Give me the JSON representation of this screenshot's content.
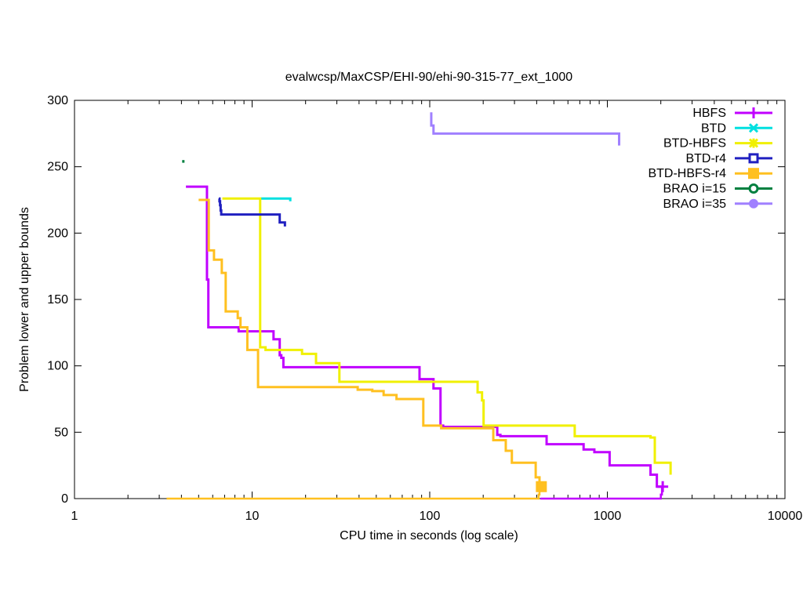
{
  "chart_data": {
    "type": "line",
    "title": "evalwcsp/MaxCSP/EHI-90/ehi-90-315-77_ext_1000",
    "xlabel": "CPU time in seconds (log scale)",
    "ylabel": "Problem lower and upper bounds",
    "xscale": "log",
    "xlim": [
      1,
      10000
    ],
    "ylim": [
      0,
      300
    ],
    "xticks": [
      1,
      10,
      100,
      1000,
      10000
    ],
    "xtick_labels": [
      "1",
      "10",
      "100",
      "1000",
      "10000"
    ],
    "yticks": [
      0,
      50,
      100,
      150,
      200,
      250,
      300
    ],
    "ytick_labels": [
      "0",
      "50",
      "100",
      "150",
      "200",
      "250",
      "300"
    ],
    "grid": false,
    "legend_position": "top-right",
    "series": [
      {
        "name": "HBFS",
        "color": "#c000ff",
        "marker": "plus",
        "points": [
          [
            4.24,
            235
          ],
          [
            5.57,
            165
          ],
          [
            5.67,
            129
          ],
          [
            8.4,
            126
          ],
          [
            13.2,
            120
          ],
          [
            14.3,
            108
          ],
          [
            14.6,
            106
          ],
          [
            15.0,
            99
          ],
          [
            87.6,
            90
          ],
          [
            105,
            83
          ],
          [
            115,
            55
          ],
          [
            119,
            54
          ],
          [
            240,
            48
          ],
          [
            250,
            47
          ],
          [
            455,
            41
          ],
          [
            735,
            37
          ],
          [
            845,
            35
          ],
          [
            1030,
            25
          ],
          [
            1750,
            18
          ],
          [
            1900,
            9
          ],
          [
            2050,
            9
          ]
        ],
        "lower": [
          [
            420,
            0
          ],
          [
            1950,
            0
          ],
          [
            2000,
            3
          ],
          [
            2030,
            9
          ]
        ]
      },
      {
        "name": "BTD",
        "color": "#00e0e0",
        "marker": "x",
        "points": [
          [
            11.2,
            226
          ],
          [
            16.4,
            226
          ],
          [
            16.4,
            224
          ]
        ]
      },
      {
        "name": "BTD-HBFS",
        "color": "#f0f000",
        "marker": "star",
        "points": [
          [
            6.8,
            226
          ],
          [
            11.1,
            114
          ],
          [
            11.9,
            112
          ],
          [
            19.1,
            109
          ],
          [
            22.9,
            102
          ],
          [
            31,
            88
          ],
          [
            186,
            80
          ],
          [
            197,
            74
          ],
          [
            201,
            55
          ],
          [
            655,
            47
          ],
          [
            1750,
            46
          ],
          [
            1850,
            27
          ],
          [
            2270,
            18
          ]
        ]
      },
      {
        "name": "BTD-r4",
        "color": "#2020c0",
        "marker": "square-open",
        "points": [
          [
            6.5,
            226
          ],
          [
            6.55,
            224
          ],
          [
            6.6,
            221
          ],
          [
            6.65,
            217
          ],
          [
            6.7,
            214
          ],
          [
            14.3,
            208
          ],
          [
            15.3,
            205
          ]
        ]
      },
      {
        "name": "BTD-HBFS-r4",
        "color": "#ffc020",
        "marker": "square-filled",
        "points": [
          [
            5.0,
            225
          ],
          [
            5.7,
            187
          ],
          [
            6.1,
            180
          ],
          [
            6.75,
            170
          ],
          [
            7.1,
            141
          ],
          [
            8.3,
            136
          ],
          [
            8.6,
            129
          ],
          [
            9.4,
            112
          ],
          [
            10.8,
            84
          ],
          [
            39.3,
            82
          ],
          [
            47.5,
            81
          ],
          [
            55,
            78
          ],
          [
            65,
            75
          ],
          [
            92,
            55
          ],
          [
            116,
            53
          ],
          [
            228,
            44
          ],
          [
            268,
            36
          ],
          [
            290,
            27
          ],
          [
            395,
            16
          ],
          [
            415,
            9
          ],
          [
            425,
            9
          ]
        ],
        "lower": [
          [
            3.3,
            0
          ],
          [
            405,
            0
          ],
          [
            410,
            3
          ],
          [
            415,
            9
          ]
        ]
      },
      {
        "name": "BRAO i=15",
        "color": "#008040",
        "marker": "circle-open",
        "points": [
          [
            4.1,
            255
          ],
          [
            4.1,
            253
          ]
        ]
      },
      {
        "name": "BRAO i=35",
        "color": "#a080ff",
        "marker": "circle-filled",
        "points": [
          [
            102,
            291
          ],
          [
            102,
            281
          ],
          [
            105,
            275
          ],
          [
            1165,
            275
          ],
          [
            1165,
            266
          ]
        ]
      }
    ]
  }
}
